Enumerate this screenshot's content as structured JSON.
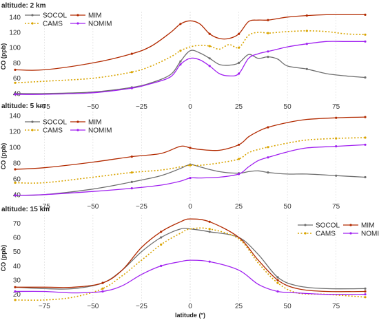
{
  "chart_data": [
    {
      "type": "line",
      "title": "altitude: 2 km",
      "xlabel": "",
      "ylabel": "CO (ppb)",
      "xlim": [
        -90,
        90
      ],
      "ylim": [
        30,
        147
      ],
      "xticks": [
        -75,
        -50,
        -25,
        0,
        25,
        50,
        75
      ],
      "yticks": [
        40,
        60,
        80,
        100,
        120,
        140
      ],
      "legend": "top-left",
      "series": [
        {
          "name": "SOCOL",
          "color": "#6e6e6e",
          "dash": "solid",
          "x": [
            -90,
            -75,
            -50,
            -30,
            -20,
            -10,
            -5,
            0,
            5,
            10,
            15,
            20,
            25,
            30,
            35,
            40,
            45,
            50,
            60,
            70,
            80,
            90
          ],
          "y": [
            40,
            40,
            42,
            48,
            54,
            65,
            82,
            96,
            93,
            86,
            78,
            77,
            80,
            91,
            86,
            88,
            85,
            76,
            72,
            66,
            63,
            61
          ]
        },
        {
          "name": "CAMS",
          "color": "#d9a400",
          "dash": "dotted",
          "x": [
            -90,
            -75,
            -50,
            -30,
            -20,
            -10,
            -5,
            0,
            5,
            10,
            15,
            20,
            25,
            30,
            35,
            40,
            45,
            50,
            60,
            70,
            80,
            90
          ],
          "y": [
            54,
            56,
            60,
            68,
            76,
            88,
            96,
            101,
            103,
            102,
            98,
            104,
            100,
            116,
            120,
            119,
            120,
            121,
            122,
            121,
            118,
            117
          ]
        },
        {
          "name": "MIM",
          "color": "#b22a00",
          "dash": "solid",
          "x": [
            -90,
            -75,
            -50,
            -30,
            -20,
            -10,
            -5,
            0,
            5,
            10,
            15,
            20,
            25,
            30,
            35,
            40,
            45,
            50,
            60,
            70,
            80,
            90
          ],
          "y": [
            71,
            71,
            80,
            92,
            102,
            120,
            131,
            135,
            131,
            118,
            112,
            112,
            118,
            134,
            136,
            136,
            138,
            140,
            142,
            143,
            143,
            143
          ]
        },
        {
          "name": "NOMIM",
          "color": "#a020f0",
          "dash": "solid",
          "x": [
            -90,
            -75,
            -50,
            -30,
            -20,
            -10,
            -5,
            0,
            5,
            10,
            15,
            20,
            25,
            30,
            35,
            40,
            45,
            50,
            60,
            70,
            80,
            90
          ],
          "y": [
            39,
            39,
            41,
            47,
            53,
            62,
            78,
            86,
            84,
            76,
            66,
            63,
            66,
            86,
            92,
            95,
            98,
            101,
            105,
            108,
            108,
            108
          ]
        }
      ]
    },
    {
      "type": "line",
      "title": "altitude: 5 km",
      "xlabel": "",
      "ylabel": "CO (ppb)",
      "xlim": [
        -90,
        90
      ],
      "ylim": [
        32,
        145
      ],
      "xticks": [
        -75,
        -50,
        -25,
        0,
        25,
        50,
        75
      ],
      "yticks": [
        40,
        60,
        80,
        100,
        120,
        140
      ],
      "legend": "top-left",
      "series": [
        {
          "name": "SOCOL",
          "color": "#6e6e6e",
          "dash": "solid",
          "x": [
            -90,
            -75,
            -50,
            -30,
            -15,
            -5,
            0,
            5,
            15,
            25,
            30,
            35,
            40,
            50,
            60,
            75,
            90
          ],
          "y": [
            39,
            40,
            47,
            56,
            64,
            73,
            78,
            75,
            69,
            67,
            69,
            70,
            68,
            66,
            66,
            64,
            62
          ]
        },
        {
          "name": "CAMS",
          "color": "#d9a400",
          "dash": "dotted",
          "x": [
            -90,
            -75,
            -50,
            -30,
            -15,
            -5,
            0,
            5,
            15,
            25,
            30,
            35,
            40,
            50,
            60,
            75,
            90
          ],
          "y": [
            55,
            55,
            62,
            68,
            71,
            75,
            77,
            77,
            80,
            85,
            93,
            97,
            100,
            105,
            109,
            111,
            112
          ]
        },
        {
          "name": "MIM",
          "color": "#b22a00",
          "dash": "solid",
          "x": [
            -90,
            -75,
            -50,
            -30,
            -15,
            -5,
            0,
            5,
            15,
            25,
            30,
            35,
            40,
            50,
            60,
            75,
            90
          ],
          "y": [
            72,
            74,
            81,
            88,
            92,
            101,
            99,
            97,
            96,
            103,
            113,
            120,
            125,
            131,
            135,
            137,
            138
          ]
        },
        {
          "name": "NOMIM",
          "color": "#a020f0",
          "dash": "solid",
          "x": [
            -90,
            -75,
            -50,
            -30,
            -15,
            -5,
            0,
            5,
            15,
            25,
            30,
            35,
            40,
            50,
            60,
            75,
            90
          ],
          "y": [
            39,
            40,
            44,
            48,
            52,
            57,
            61,
            61,
            62,
            66,
            75,
            83,
            87,
            94,
            99,
            101,
            103
          ]
        }
      ]
    },
    {
      "type": "line",
      "title": "altitude: 15 km",
      "xlabel": "latitude (°)",
      "ylabel": "CO (ppb)",
      "xlim": [
        -90,
        90
      ],
      "ylim": [
        15,
        76
      ],
      "xticks": [
        -75,
        -50,
        -25,
        0,
        25,
        50,
        75
      ],
      "yticks": [
        20,
        30,
        40,
        50,
        60,
        70
      ],
      "legend": "top-right",
      "series": [
        {
          "name": "SOCOL",
          "color": "#6e6e6e",
          "dash": "solid",
          "x": [
            -90,
            -75,
            -60,
            -45,
            -35,
            -25,
            -15,
            -5,
            0,
            10,
            25,
            35,
            45,
            55,
            70,
            90
          ],
          "y": [
            25,
            24,
            24,
            28,
            37,
            50,
            60,
            66,
            66,
            64,
            60,
            48,
            32,
            26,
            24,
            24
          ]
        },
        {
          "name": "CAMS",
          "color": "#d9a400",
          "dash": "dotted",
          "x": [
            -90,
            -75,
            -60,
            -45,
            -35,
            -25,
            -15,
            -5,
            0,
            10,
            25,
            35,
            45,
            55,
            70,
            90
          ],
          "y": [
            16,
            16,
            18,
            24,
            33,
            44,
            55,
            63,
            66,
            66,
            59,
            42,
            28,
            21,
            20,
            18
          ]
        },
        {
          "name": "MIM",
          "color": "#b22a00",
          "dash": "solid",
          "x": [
            -90,
            -75,
            -60,
            -45,
            -35,
            -25,
            -15,
            -5,
            0,
            10,
            25,
            35,
            45,
            55,
            70,
            90
          ],
          "y": [
            25,
            25,
            25,
            28,
            37,
            53,
            64,
            71,
            73,
            71,
            60,
            44,
            30,
            24,
            22,
            22
          ]
        },
        {
          "name": "NOMIM",
          "color": "#a020f0",
          "dash": "solid",
          "x": [
            -90,
            -75,
            -60,
            -45,
            -35,
            -25,
            -15,
            -5,
            0,
            10,
            25,
            35,
            45,
            55,
            70,
            90
          ],
          "y": [
            22,
            22,
            21,
            22,
            26,
            34,
            40,
            43,
            44,
            43,
            37,
            27,
            22,
            21,
            20,
            20
          ]
        }
      ]
    }
  ]
}
